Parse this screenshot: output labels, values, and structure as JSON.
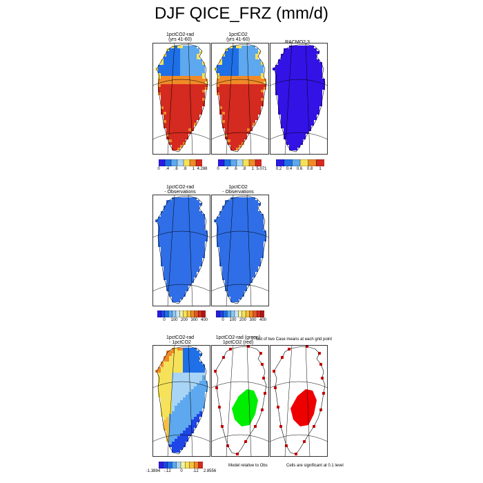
{
  "title": "DJF QICE_FRZ (mm/d)",
  "rows": [
    {
      "panels": [
        {
          "title1": "1pctCO2-rad",
          "title2": "(yrs 41-60)",
          "style": "model"
        },
        {
          "title1": "1pctCO2",
          "title2": "(yrs 41-60)",
          "style": "model"
        },
        {
          "title1": "RACMO2.3",
          "title2": "",
          "style": "obs"
        }
      ]
    },
    {
      "panels": [
        {
          "title1": "1pctCO2-rad",
          "title2": "- Observations",
          "style": "diff"
        },
        {
          "title1": "1pctCO2",
          "title2": "- Observations",
          "style": "diff"
        }
      ]
    },
    {
      "panels": [
        {
          "title1": "1pctCO2-rad",
          "title2": "- 1pctCO2",
          "style": "modeldiff"
        },
        {
          "title1": "1pctCO2-rad (green)",
          "title2": "1pctCO2 (red)",
          "style": "sig-green"
        },
        {
          "title1": "",
          "title2": "",
          "style": "sig-red"
        }
      ]
    }
  ],
  "colorbars": [
    {
      "labels": [
        "0",
        ".4",
        ".6",
        ".8",
        "1",
        "4.288"
      ],
      "colors": [
        "#2b1ae6",
        "#1f6fe6",
        "#5da8ee",
        "#a8d4f5",
        "#f5e25a",
        "#f08a28",
        "#d42a1f"
      ]
    },
    {
      "labels": [
        "0",
        ".4",
        ".6",
        ".8",
        "1",
        "5.071"
      ],
      "colors": [
        "#2b1ae6",
        "#1f6fe6",
        "#5da8ee",
        "#a8d4f5",
        "#f5e25a",
        "#f08a28",
        "#d42a1f"
      ]
    },
    {
      "labels": [
        "0.2",
        "0.4",
        "0.6",
        "0.8",
        "1"
      ],
      "colors": [
        "#2b1ae6",
        "#1f6fe6",
        "#5da8ee",
        "#f5e25a",
        "#f08a28",
        "#d42a1f"
      ]
    },
    {
      "labels": [
        "0",
        "100",
        "200",
        "300",
        "400"
      ],
      "colors": [
        "#2b1ae6",
        "#1f45e6",
        "#1f6fe6",
        "#5da8ee",
        "#8ec6f2",
        "#c8e6fa",
        "#f5f0a0",
        "#f5e25a",
        "#f5c040",
        "#f08a28",
        "#e05820",
        "#d42a1f",
        "#b01818"
      ]
    },
    {
      "labels": [
        "0",
        "100",
        "200",
        "300",
        "400"
      ],
      "colors": [
        "#2b1ae6",
        "#1f45e6",
        "#1f6fe6",
        "#5da8ee",
        "#8ec6f2",
        "#c8e6fa",
        "#f5f0a0",
        "#f5e25a",
        "#f5c040",
        "#f08a28",
        "#e05820",
        "#d42a1f",
        "#b01818"
      ]
    },
    {
      "labels": [
        "-1.3894",
        "-.12",
        "0",
        ".12",
        "2.8556"
      ],
      "colors": [
        "#2b1ae6",
        "#1f45e6",
        "#1f6fe6",
        "#5da8ee",
        "#a8d4f5",
        "#f5f0a0",
        "#f5e25a",
        "#f5c040",
        "#f08a28",
        "#d42a1f"
      ]
    }
  ],
  "annotations": {
    "ttest": "T-Test of two Case means at each grid point",
    "model_relative": "Model relative to Obs",
    "significance": "Cells are significant at 0.1 level"
  },
  "chart_data": {
    "type": "heatmap",
    "title": "DJF QICE_FRZ (mm/d)",
    "panels": [
      "1pctCO2-rad (yrs 41-60)",
      "1pctCO2 (yrs 41-60)",
      "RACMO2.3",
      "1pctCO2-rad - Observations",
      "1pctCO2 - Observations",
      "1pctCO2-rad - 1pctCO2",
      "1pctCO2-rad (green) 1pctCO2 (red)"
    ],
    "colorbar_ranges": [
      [
        0,
        4.288
      ],
      [
        0,
        5.071
      ],
      [
        0.2,
        1
      ],
      [
        0,
        400
      ],
      [
        0,
        400
      ],
      [
        -1.3894,
        2.8556
      ]
    ]
  }
}
